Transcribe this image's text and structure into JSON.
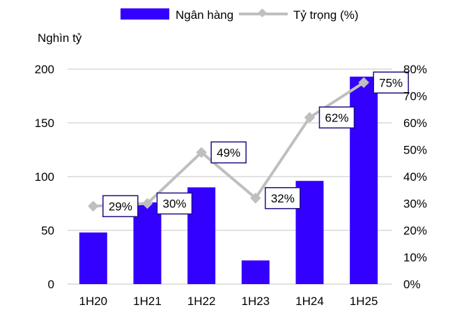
{
  "chart_data": {
    "type": "bar",
    "categories": [
      "1H20",
      "1H21",
      "1H22",
      "1H23",
      "1H24",
      "1H25"
    ],
    "series": [
      {
        "name": "Ngân hàng",
        "type": "bar",
        "axis": "left",
        "color": "#3300ff",
        "values": [
          48,
          76,
          90,
          22,
          96,
          193
        ]
      },
      {
        "name": "Tỷ trọng (%)",
        "type": "line",
        "axis": "right",
        "color": "#bfbfbf",
        "marker": "diamond",
        "values": [
          29,
          30,
          49,
          32,
          62,
          75
        ],
        "data_labels": [
          "29%",
          "30%",
          "49%",
          "32%",
          "62%",
          "75%"
        ]
      }
    ],
    "ylabel": "Nghìn tỷ",
    "ylim": [
      0,
      200
    ],
    "yticks": [
      "0",
      "50",
      "100",
      "150",
      "200"
    ],
    "y2lim": [
      0,
      80
    ],
    "y2ticks": [
      "0%",
      "10%",
      "20%",
      "30%",
      "40%",
      "50%",
      "60%",
      "70%",
      "80%"
    ],
    "grid": true,
    "legend": "top",
    "label_border_color": "#1a1080"
  }
}
